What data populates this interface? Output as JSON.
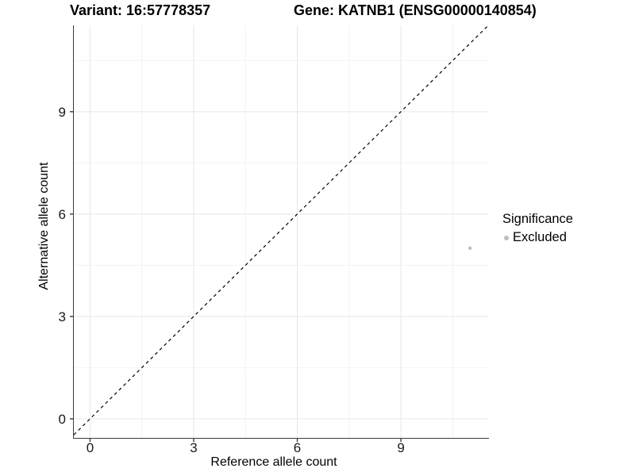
{
  "header": {
    "variant_title": "Variant: 16:57778357",
    "gene_title": "Gene: KATNB1 (ENSG00000140854)"
  },
  "legend": {
    "title": "Significance",
    "items": [
      {
        "label": "Excluded",
        "color": "#bdbdbd",
        "marker": "circle-icon"
      }
    ]
  },
  "chart_data": {
    "type": "scatter",
    "title": "Variant: 16:57778357  Gene: KATNB1 (ENSG00000140854)",
    "xlabel": "Reference allele count",
    "ylabel": "Alternative allele count",
    "xlim": [
      -0.47,
      11.55
    ],
    "ylim": [
      -0.56,
      11.53
    ],
    "x_ticks": [
      0,
      3,
      6,
      9
    ],
    "y_ticks": [
      0,
      3,
      6,
      9
    ],
    "x_minor_ticks": [
      1.5,
      4.5,
      7.5,
      10.5
    ],
    "y_minor_ticks": [
      1.5,
      4.5,
      7.5,
      10.5
    ],
    "grid": true,
    "legend_position": "right",
    "legend_title": "Significance",
    "series": [
      {
        "name": "Excluded",
        "color": "#bdbdbd",
        "marker": "circle",
        "points": [
          [
            11,
            5
          ]
        ]
      }
    ],
    "reference_line": {
      "type": "identity y=x",
      "style": "dashed",
      "color": "#000000"
    },
    "colors": {
      "grid_major": "#e7e7e7",
      "grid_minor": "#f2f2f2",
      "axis_line": "#3a3a3a",
      "tick_label": "#1a1a1a",
      "title": "#000000"
    }
  }
}
